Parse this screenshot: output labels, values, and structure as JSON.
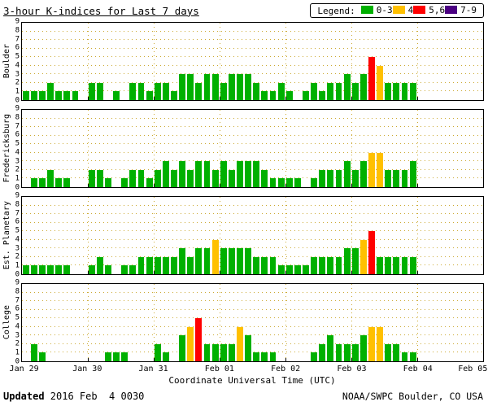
{
  "title": "3-hour K-indices for Last 7 days",
  "legend": {
    "label": "Legend:",
    "items": [
      {
        "label": "0-3",
        "color": "#00b000"
      },
      {
        "label": "4",
        "color": "#ffc000"
      },
      {
        "label": "5,6",
        "color": "#ff0000"
      },
      {
        "label": "7-9",
        "color": "#4b0082"
      }
    ]
  },
  "footer": {
    "updated_label": "Updated",
    "updated_value": " 2016 Feb  4 0030",
    "credit": "NOAA/SWPC Boulder, CO USA"
  },
  "chart_data": {
    "type": "bar",
    "title": "3-hour K-indices for Last 7 days",
    "xlabel": "Coordinate Universal Time (UTC)",
    "ylim": [
      0,
      9
    ],
    "y_ticks": [
      0,
      1,
      2,
      3,
      4,
      5,
      6,
      7,
      8,
      9
    ],
    "x_ticks": [
      "Jan 29",
      "Jan 30",
      "Jan 31",
      "Feb 01",
      "Feb 02",
      "Feb 03",
      "Feb 04",
      "Feb 05"
    ],
    "days": 7,
    "bars_per_day": 8,
    "grid": "dotted-gold-horizontal-and-day-boundaries",
    "legend_position": "top-right",
    "colors": {
      "k0_3": "#00b000",
      "k4": "#ffc000",
      "k5_6": "#ff0000",
      "k7_9": "#4b0082"
    },
    "series": [
      {
        "name": "Boulder",
        "values": [
          1,
          1,
          1,
          2,
          1,
          1,
          1,
          0,
          2,
          2,
          0,
          1,
          0,
          2,
          2,
          1,
          2,
          2,
          1,
          3,
          3,
          2,
          3,
          3,
          2,
          3,
          3,
          3,
          2,
          1,
          1,
          2,
          1,
          0,
          1,
          2,
          1,
          2,
          2,
          3,
          2,
          3,
          5,
          4,
          2,
          2,
          2,
          2,
          0,
          0,
          0,
          0,
          0,
          0,
          0,
          0
        ]
      },
      {
        "name": "Fredericksburg",
        "values": [
          0,
          1,
          1,
          2,
          1,
          1,
          0,
          0,
          2,
          2,
          1,
          0,
          1,
          2,
          2,
          1,
          2,
          3,
          2,
          3,
          2,
          3,
          3,
          2,
          3,
          2,
          3,
          3,
          3,
          2,
          1,
          1,
          1,
          1,
          0,
          1,
          2,
          2,
          2,
          3,
          2,
          3,
          4,
          4,
          2,
          2,
          2,
          3,
          0,
          0,
          0,
          0,
          0,
          0,
          0,
          0
        ]
      },
      {
        "name": "Est. Planetary",
        "values": [
          1,
          1,
          1,
          1,
          1,
          1,
          0,
          0,
          1,
          2,
          1,
          0,
          1,
          1,
          2,
          2,
          2,
          2,
          2,
          3,
          2,
          3,
          3,
          4,
          3,
          3,
          3,
          3,
          2,
          2,
          2,
          1,
          1,
          1,
          1,
          2,
          2,
          2,
          2,
          3,
          3,
          4,
          5,
          2,
          2,
          2,
          2,
          2,
          0,
          0,
          0,
          0,
          0,
          0,
          0,
          0
        ]
      },
      {
        "name": "College",
        "values": [
          0,
          2,
          1,
          0,
          0,
          0,
          0,
          0,
          0,
          0,
          1,
          1,
          1,
          0,
          0,
          0,
          2,
          1,
          0,
          3,
          4,
          5,
          2,
          2,
          2,
          2,
          4,
          3,
          1,
          1,
          1,
          0,
          0,
          0,
          0,
          1,
          2,
          3,
          2,
          2,
          2,
          3,
          4,
          4,
          2,
          2,
          1,
          1,
          0,
          0,
          0,
          0,
          0,
          0,
          0,
          0
        ]
      }
    ]
  }
}
